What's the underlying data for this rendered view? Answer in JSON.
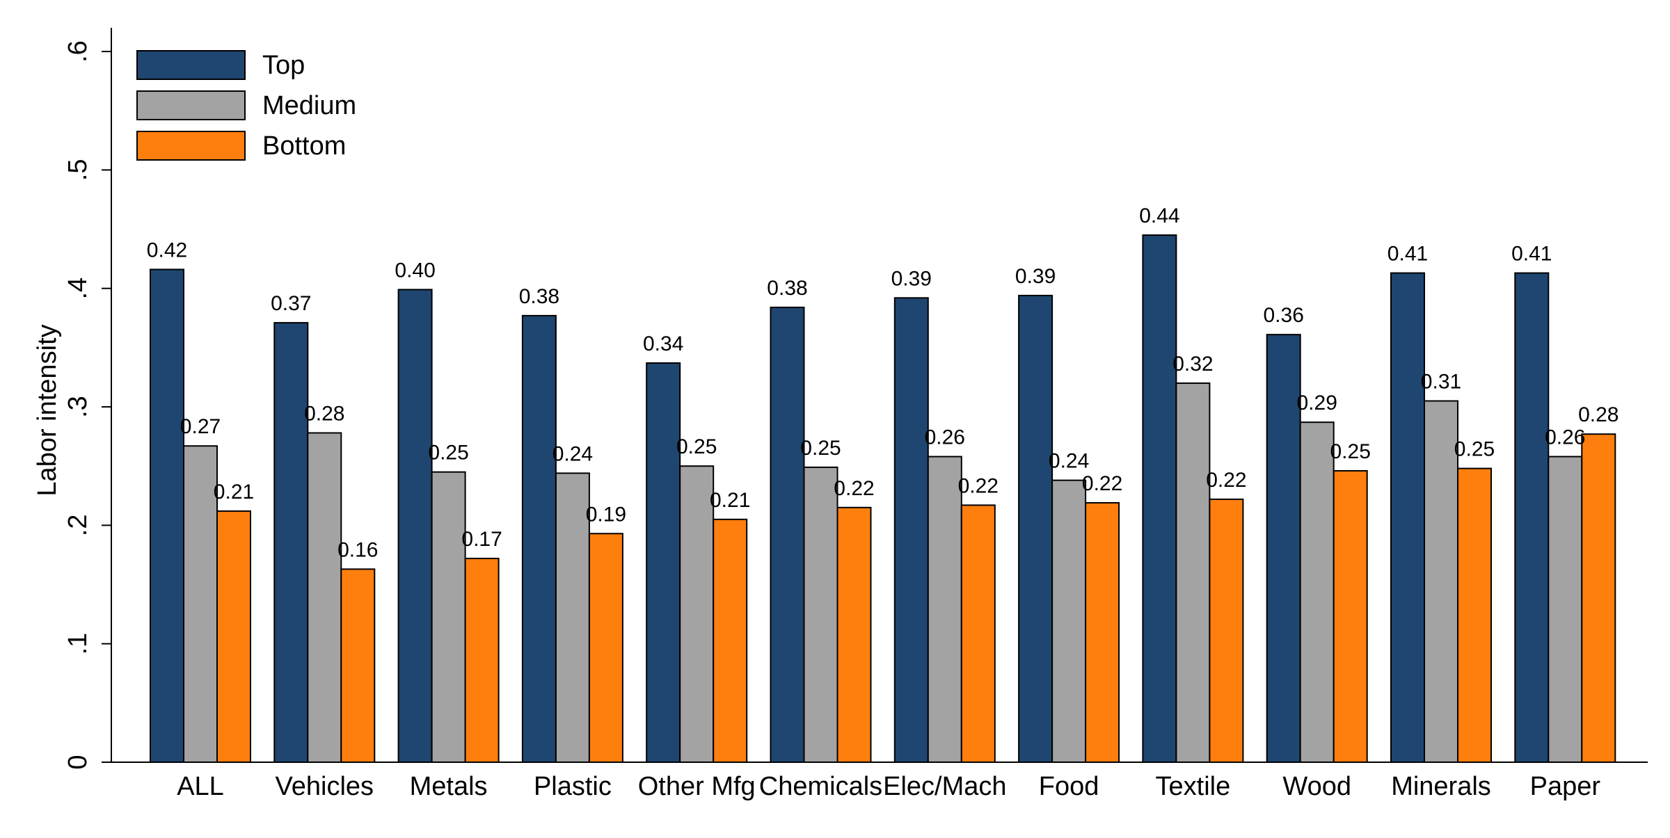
{
  "chart_data": {
    "type": "bar",
    "title": "",
    "xlabel": "",
    "ylabel": "Labor intensity",
    "ylim": [
      0,
      0.62
    ],
    "yticks": [
      {
        "value": 0,
        "label": "0"
      },
      {
        "value": 0.1,
        "label": ".1"
      },
      {
        "value": 0.2,
        "label": ".2"
      },
      {
        "value": 0.3,
        "label": ".3"
      },
      {
        "value": 0.4,
        "label": ".4"
      },
      {
        "value": 0.5,
        "label": ".5"
      },
      {
        "value": 0.6,
        "label": ".6"
      }
    ],
    "grid": false,
    "legend_position": "top-left",
    "categories": [
      "ALL",
      "Vehicles",
      "Metals",
      "Plastic",
      "Other Mfg",
      "Chemicals",
      "Elec/Mach",
      "Food",
      "Textile",
      "Wood",
      "Minerals",
      "Paper"
    ],
    "series": [
      {
        "name": "Top",
        "color": "#1f4670",
        "values": [
          0.416,
          0.371,
          0.399,
          0.377,
          0.337,
          0.384,
          0.392,
          0.394,
          0.445,
          0.361,
          0.413,
          0.413
        ],
        "labels": [
          "0.42",
          "0.37",
          "0.40",
          "0.38",
          "0.34",
          "0.38",
          "0.39",
          "0.39",
          "0.44",
          "0.36",
          "0.41",
          "0.41"
        ]
      },
      {
        "name": "Medium",
        "color": "#a3a3a3",
        "values": [
          0.267,
          0.278,
          0.245,
          0.244,
          0.25,
          0.249,
          0.258,
          0.238,
          0.32,
          0.287,
          0.305,
          0.258
        ],
        "labels": [
          "0.27",
          "0.28",
          "0.25",
          "0.24",
          "0.25",
          "0.25",
          "0.26",
          "0.24",
          "0.32",
          "0.29",
          "0.31",
          "0.26"
        ]
      },
      {
        "name": "Bottom",
        "color": "#ff7f0e",
        "values": [
          0.212,
          0.163,
          0.172,
          0.193,
          0.205,
          0.215,
          0.217,
          0.219,
          0.222,
          0.246,
          0.248,
          0.277
        ],
        "labels": [
          "0.21",
          "0.16",
          "0.17",
          "0.19",
          "0.21",
          "0.22",
          "0.22",
          "0.22",
          "0.22",
          "0.25",
          "0.25",
          "0.28"
        ]
      }
    ]
  }
}
